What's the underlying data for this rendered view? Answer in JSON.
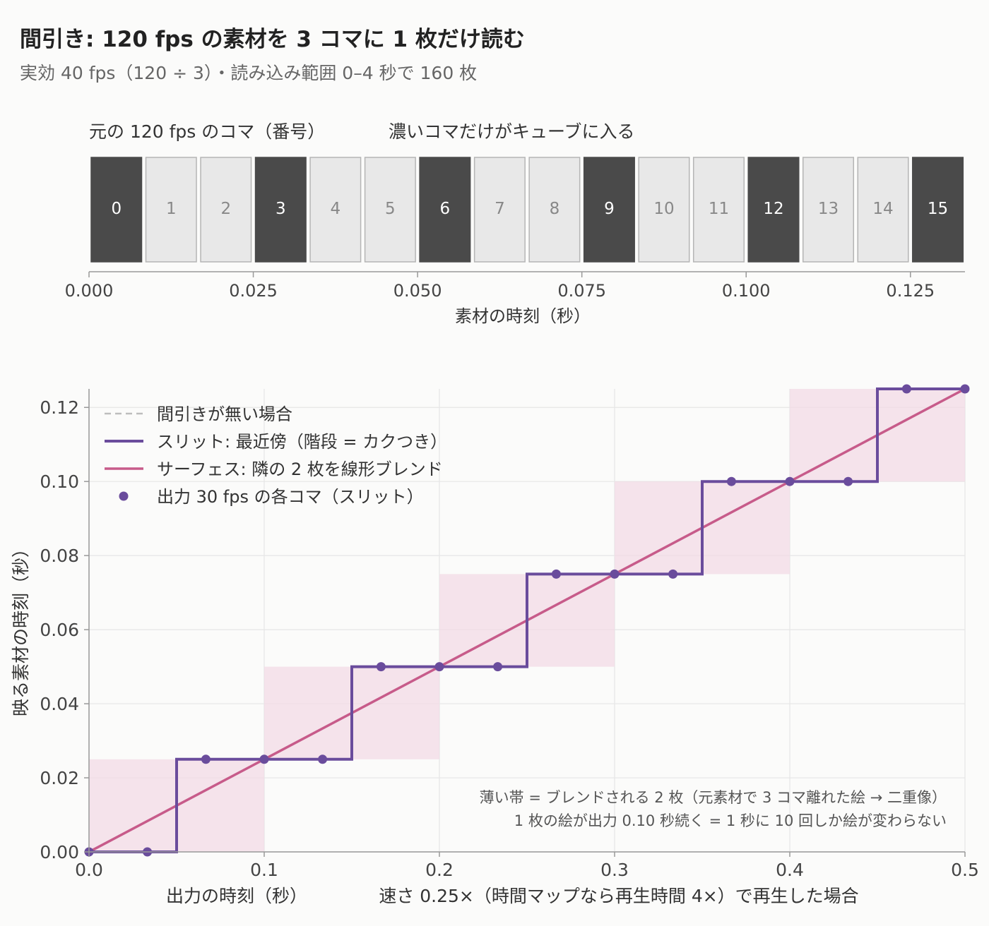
{
  "title": "間引き: 120 fps の素材を 3 コマに 1 枚だけ読む",
  "subtitle": "実効 40 fps（120 ÷ 3）・読み込み範囲 0–4 秒で 160 枚",
  "colors": {
    "kept_frame": "#4a4a4a",
    "skipped_frame": "#e8e8e8",
    "slit": "#6a4c9c",
    "surface": "#c75b8a",
    "band": "#f3dbe6",
    "no_decimation": "#bdbdbd"
  },
  "frames_chart": {
    "title_left": "元の 120 fps のコマ（番号）",
    "title_right": "濃いコマだけがキューブに入る",
    "xlabel": "素材の時刻（秒）",
    "frames": [
      {
        "label": "0",
        "kept": true
      },
      {
        "label": "1",
        "kept": false
      },
      {
        "label": "2",
        "kept": false
      },
      {
        "label": "3",
        "kept": true
      },
      {
        "label": "4",
        "kept": false
      },
      {
        "label": "5",
        "kept": false
      },
      {
        "label": "6",
        "kept": true
      },
      {
        "label": "7",
        "kept": false
      },
      {
        "label": "8",
        "kept": false
      },
      {
        "label": "9",
        "kept": true
      },
      {
        "label": "10",
        "kept": false
      },
      {
        "label": "11",
        "kept": false
      },
      {
        "label": "12",
        "kept": true
      },
      {
        "label": "13",
        "kept": false
      },
      {
        "label": "14",
        "kept": false
      },
      {
        "label": "15",
        "kept": true
      }
    ],
    "xticks": [
      "0.000",
      "0.025",
      "0.050",
      "0.075",
      "0.100",
      "0.125"
    ],
    "xtick_values": [
      0,
      0.025,
      0.05,
      0.075,
      0.1,
      0.125
    ]
  },
  "chart_data": {
    "type": "line",
    "xlabel": "出力の時刻（秒）",
    "xlabel_suffix": "速さ 0.25×（時間マップなら再生時間 4×）で再生した場合",
    "ylabel": "映る素材の時刻（秒）",
    "xlim": [
      0,
      0.5
    ],
    "ylim": [
      0,
      0.125
    ],
    "xticks": [
      "0.0",
      "0.1",
      "0.2",
      "0.3",
      "0.4",
      "0.5"
    ],
    "xtick_values": [
      0,
      0.1,
      0.2,
      0.3,
      0.4,
      0.5
    ],
    "yticks": [
      "0.00",
      "0.02",
      "0.04",
      "0.06",
      "0.08",
      "0.10",
      "0.12"
    ],
    "ytick_values": [
      0,
      0.02,
      0.04,
      0.06,
      0.08,
      0.1,
      0.12
    ],
    "grid": true,
    "legend_position": "top-left",
    "series": [
      {
        "name": "間引きが無い場合",
        "style": "dashed",
        "x": [
          0,
          0.5
        ],
        "y": [
          0,
          0.125
        ]
      },
      {
        "name": "スリット: 最近傍（階段 = カクつき）",
        "style": "step",
        "x": [
          0,
          0.05,
          0.05,
          0.15,
          0.15,
          0.25,
          0.25,
          0.35,
          0.35,
          0.45,
          0.45,
          0.5
        ],
        "y": [
          0,
          0,
          0.025,
          0.025,
          0.05,
          0.05,
          0.075,
          0.075,
          0.1,
          0.1,
          0.125,
          0.125
        ]
      },
      {
        "name": "サーフェス: 隣の 2 枚を線形ブレンド",
        "style": "line",
        "x": [
          0,
          0.5
        ],
        "y": [
          0,
          0.125
        ]
      },
      {
        "name": "出力 30 fps の各コマ（スリット）",
        "style": "points",
        "x": [
          0,
          0.0333,
          0.0667,
          0.1,
          0.1333,
          0.1667,
          0.2,
          0.2333,
          0.2667,
          0.3,
          0.3333,
          0.3667,
          0.4,
          0.4333,
          0.4667,
          0.5
        ],
        "y": [
          0,
          0,
          0.025,
          0.025,
          0.025,
          0.05,
          0.05,
          0.05,
          0.075,
          0.075,
          0.075,
          0.1,
          0.1,
          0.1,
          0.125,
          0.125
        ]
      }
    ],
    "bands": [
      {
        "x": [
          0,
          0.1
        ],
        "y": [
          0,
          0.025
        ]
      },
      {
        "x": [
          0.1,
          0.2
        ],
        "y": [
          0.025,
          0.05
        ]
      },
      {
        "x": [
          0.2,
          0.3
        ],
        "y": [
          0.05,
          0.075
        ]
      },
      {
        "x": [
          0.3,
          0.4
        ],
        "y": [
          0.075,
          0.1
        ]
      },
      {
        "x": [
          0.4,
          0.5
        ],
        "y": [
          0.1,
          0.125
        ]
      }
    ],
    "annotations": [
      "薄い帯 = ブレンドされる 2 枚（元素材で 3 コマ離れた絵 → 二重像）",
      "1 枚の絵が出力 0.10 秒続く = 1 秒に 10 回しか絵が変わらない"
    ]
  }
}
